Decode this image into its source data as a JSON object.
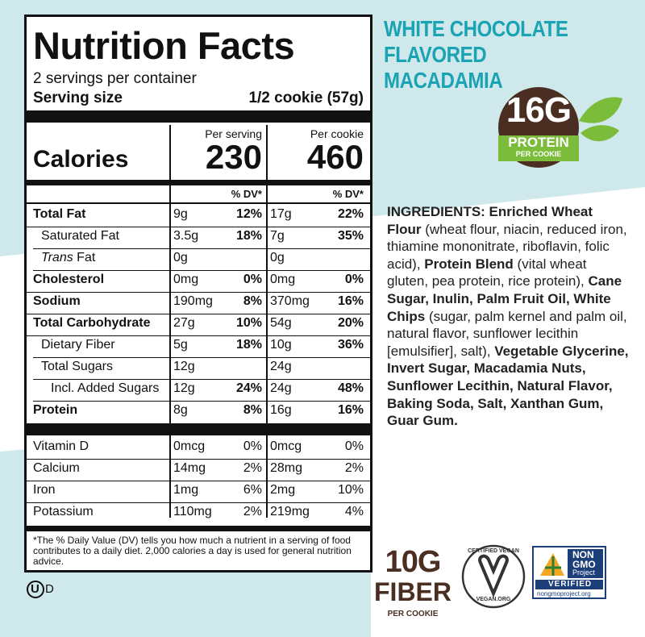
{
  "label": {
    "title": "Nutrition Facts",
    "servings": "2 servings per container",
    "serving_size_label": "Serving size",
    "serving_size": "1/2 cookie (57g)",
    "calories_label": "Calories",
    "columns": [
      {
        "header": "Per serving",
        "calories": "230",
        "dv_header": "% DV*"
      },
      {
        "header": "Per cookie",
        "calories": "460",
        "dv_header": "% DV*"
      }
    ],
    "rows": [
      {
        "name": "Total Fat",
        "bold": true,
        "indent": 0,
        "cells": [
          [
            "9g",
            "12%"
          ],
          [
            "17g",
            "22%"
          ]
        ]
      },
      {
        "name": "Saturated Fat",
        "bold": false,
        "indent": 1,
        "cells": [
          [
            "3.5g",
            "18%"
          ],
          [
            "7g",
            "35%"
          ]
        ]
      },
      {
        "italic_prefix": "Trans",
        "name": "Fat",
        "bold": false,
        "indent": 1,
        "cells": [
          [
            "0g",
            null
          ],
          [
            "0g",
            null
          ]
        ]
      },
      {
        "name": "Cholesterol",
        "bold": true,
        "indent": 0,
        "cells": [
          [
            "0mg",
            "0%"
          ],
          [
            "0mg",
            "0%"
          ]
        ]
      },
      {
        "name": "Sodium",
        "bold": true,
        "indent": 0,
        "cells": [
          [
            "190mg",
            "8%"
          ],
          [
            "370mg",
            "16%"
          ]
        ]
      },
      {
        "name": "Total Carbohydrate",
        "bold": true,
        "indent": 0,
        "cells": [
          [
            "27g",
            "10%"
          ],
          [
            "54g",
            "20%"
          ]
        ]
      },
      {
        "name": "Dietary Fiber",
        "bold": false,
        "indent": 1,
        "cells": [
          [
            "5g",
            "18%"
          ],
          [
            "10g",
            "36%"
          ]
        ]
      },
      {
        "name": "Total Sugars",
        "bold": false,
        "indent": 1,
        "cells": [
          [
            "12g",
            null
          ],
          [
            "24g",
            null
          ]
        ]
      },
      {
        "name": "Incl. Added Sugars",
        "bold": false,
        "indent": 2,
        "cells": [
          [
            "12g",
            "24%"
          ],
          [
            "24g",
            "48%"
          ]
        ]
      },
      {
        "name": "Protein",
        "bold": true,
        "indent": 0,
        "cells": [
          [
            "8g",
            "8%"
          ],
          [
            "16g",
            "16%"
          ]
        ]
      }
    ],
    "vitamins": [
      {
        "name": "Vitamin D",
        "cells": [
          [
            "0mcg",
            "0%"
          ],
          [
            "0mcg",
            "0%"
          ]
        ]
      },
      {
        "name": "Calcium",
        "cells": [
          [
            "14mg",
            "2%"
          ],
          [
            "28mg",
            "2%"
          ]
        ]
      },
      {
        "name": "Iron",
        "cells": [
          [
            "1mg",
            "6%"
          ],
          [
            "2mg",
            "10%"
          ]
        ]
      },
      {
        "name": "Potassium",
        "cells": [
          [
            "110mg",
            "2%"
          ],
          [
            "219mg",
            "4%"
          ]
        ]
      }
    ],
    "footnote": "*The % Daily Value (DV) tells you how much a nutrient in a serving of food contributes to a daily diet. 2,000 calories a day is used for general nutrition advice."
  },
  "kosher": {
    "symbol": "U",
    "suffix": "D"
  },
  "product": {
    "lines": [
      "WHITE CHOCOLATE",
      "FLAVORED MACADAMIA"
    ]
  },
  "protein_badge": {
    "amount": "16G",
    "label": "PROTEIN",
    "sub": "PER COOKIE"
  },
  "ingredients": [
    {
      "text": "INGREDIENTS: Enriched Wheat Flour",
      "bold": true
    },
    {
      "text": " (wheat flour, niacin, reduced iron, thiamine mononitrate, riboflavin, folic acid), ",
      "bold": false
    },
    {
      "text": "Protein Blend",
      "bold": true
    },
    {
      "text": " (vital wheat gluten, pea protein, rice protein), ",
      "bold": false
    },
    {
      "text": "Cane Sugar, Inulin, Palm Fruit Oil, White Chips",
      "bold": true
    },
    {
      "text": " (sugar, palm kernel and palm oil, natural flavor, sunflower lecithin [emulsifier], salt), ",
      "bold": false
    },
    {
      "text": "Vegetable Glycerine, Invert Sugar, Macadamia Nuts, Sunflower Lecithin, Natural Flavor, Baking Soda, Salt, Xanthan Gum, Guar Gum.",
      "bold": true
    }
  ],
  "fiber_badge": {
    "amount": "10G",
    "label": "FIBER",
    "sub": "PER COOKIE"
  },
  "vegan_badge": {
    "top": "CERTIFIED VEGAN",
    "bottom": "VEGAN.ORG"
  },
  "nongmo_badge": {
    "line1": "NON",
    "line2": "GMO",
    "line3": "Project",
    "verified": "VERIFIED",
    "url": "nongmoproject.org"
  }
}
